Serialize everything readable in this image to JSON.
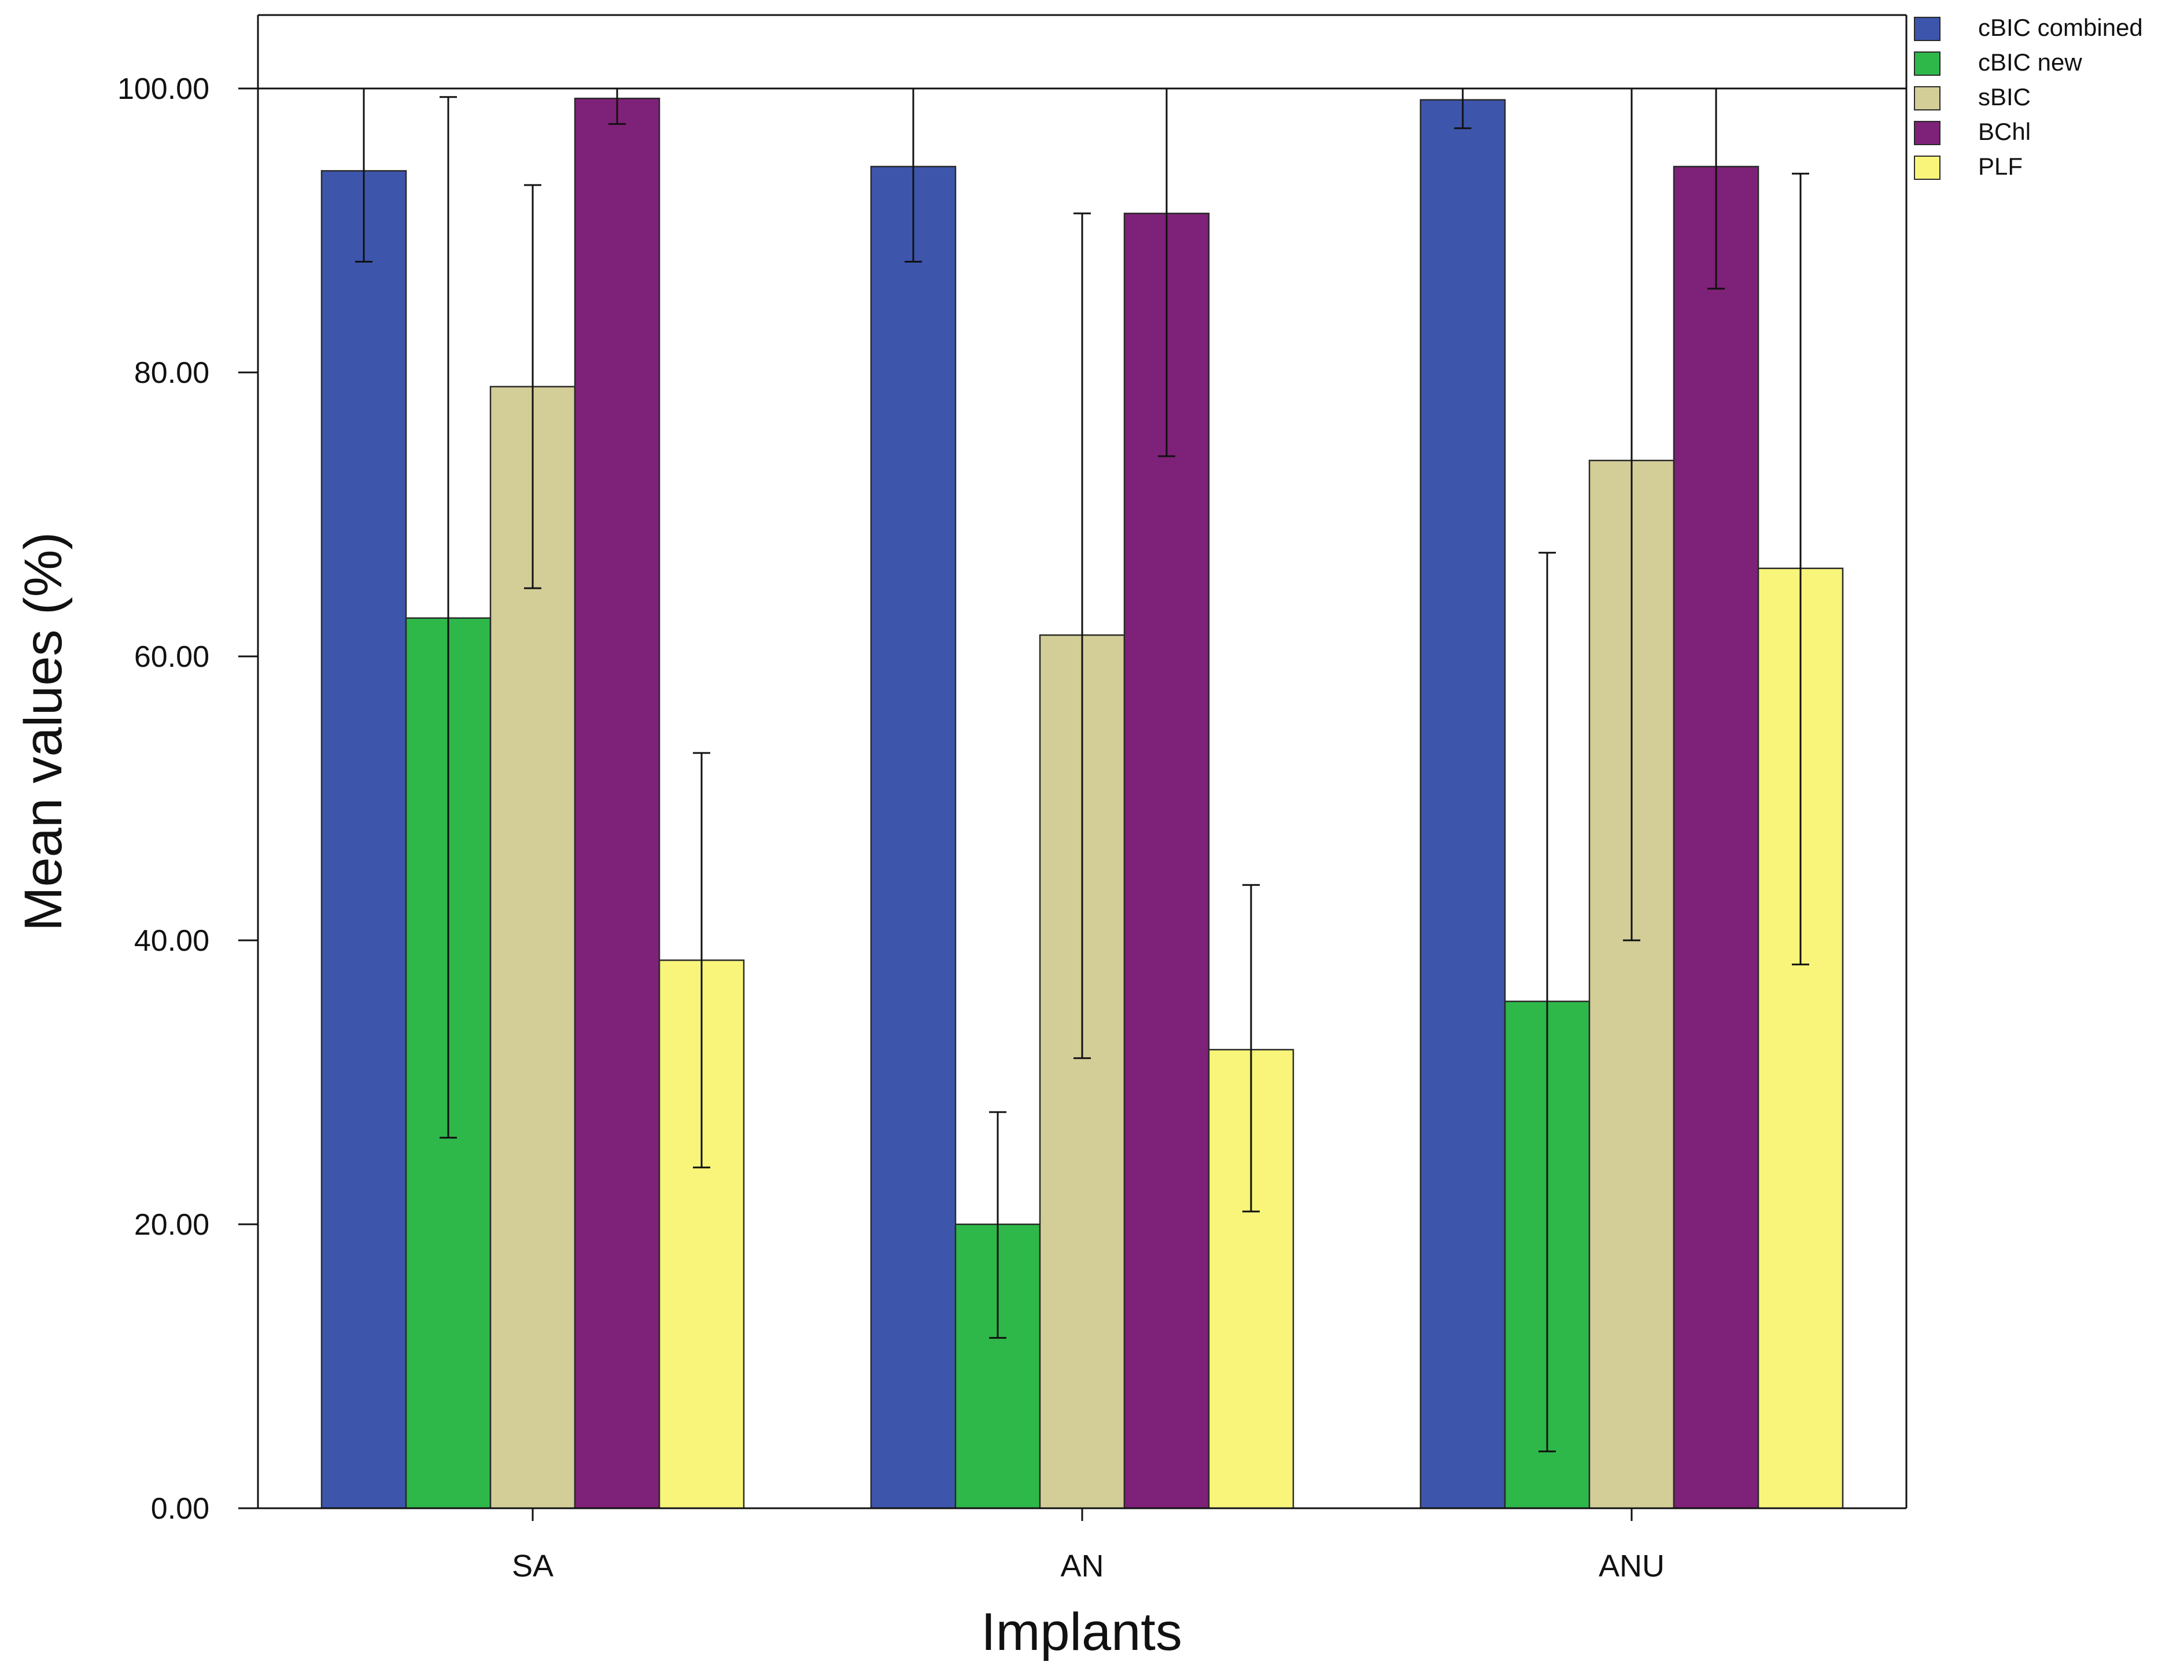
{
  "chart_data": {
    "type": "bar",
    "title": "",
    "xlabel": "Implants",
    "ylabel": "Mean values (%)",
    "ylim": [
      0,
      100
    ],
    "y_ticks": [
      "0.00",
      "20.00",
      "40.00",
      "60.00",
      "80.00",
      "100.00"
    ],
    "categories": [
      "SA",
      "AN",
      "ANU"
    ],
    "series": [
      {
        "name": "cBIC combined",
        "color": "#3d56ac",
        "values": [
          94.2,
          94.5,
          99.2
        ],
        "err_low": [
          87.8,
          87.8,
          97.2
        ],
        "err_high": [
          100,
          100,
          100
        ]
      },
      {
        "name": "cBIC new",
        "color": "#2eb84a",
        "values": [
          62.7,
          20.0,
          35.7
        ],
        "err_low": [
          26.1,
          12.0,
          4.0
        ],
        "err_high": [
          99.4,
          27.9,
          67.3
        ]
      },
      {
        "name": "sBIC",
        "color": "#d3ce98",
        "values": [
          79.0,
          61.5,
          73.8
        ],
        "err_low": [
          64.8,
          31.7,
          40.0
        ],
        "err_high": [
          93.2,
          91.2,
          100
        ]
      },
      {
        "name": "BChl",
        "color": "#7e2178",
        "values": [
          99.3,
          91.2,
          94.5
        ],
        "err_low": [
          97.5,
          74.1,
          85.9
        ],
        "err_high": [
          100,
          100,
          100
        ]
      },
      {
        "name": "PLF",
        "color": "#f8f57a",
        "values": [
          38.6,
          32.3,
          66.2
        ],
        "err_low": [
          24.0,
          20.9,
          38.3
        ],
        "err_high": [
          53.2,
          43.9,
          94.0
        ]
      }
    ],
    "legend_position": "top-right",
    "reference_line": 100
  }
}
